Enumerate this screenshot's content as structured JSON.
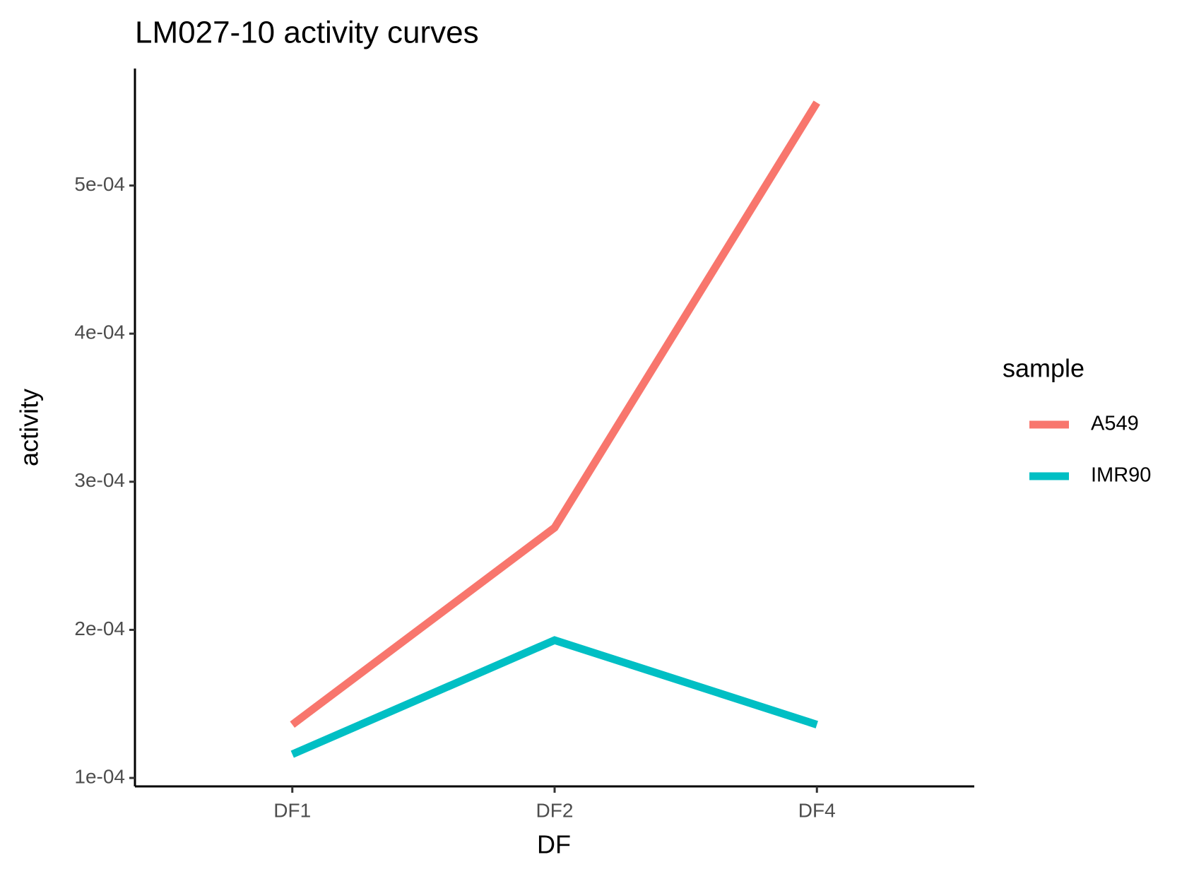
{
  "chart_data": {
    "type": "line",
    "title": "LM027-10 activity curves",
    "x_label": "DF",
    "y_label": "activity",
    "legend_title": "sample",
    "legend_position": "right",
    "categories": [
      "DF1",
      "DF2",
      "DF4"
    ],
    "series": [
      {
        "name": "A549",
        "color": "#f8766d",
        "values": [
          0.000136,
          0.000269,
          0.000556
        ]
      },
      {
        "name": "IMR90",
        "color": "#00bfc4",
        "values": [
          0.000116,
          0.000193,
          0.000136
        ]
      }
    ],
    "ylim": [
      9.43e-05,
      0.000579
    ],
    "yticks": [
      {
        "value": 0.0001,
        "label": "1e-04"
      },
      {
        "value": 0.0002,
        "label": "2e-04"
      },
      {
        "value": 0.0003,
        "label": "3e-04"
      },
      {
        "value": 0.0004,
        "label": "4e-04"
      },
      {
        "value": 0.0005,
        "label": "5e-04"
      }
    ],
    "grid": false
  }
}
